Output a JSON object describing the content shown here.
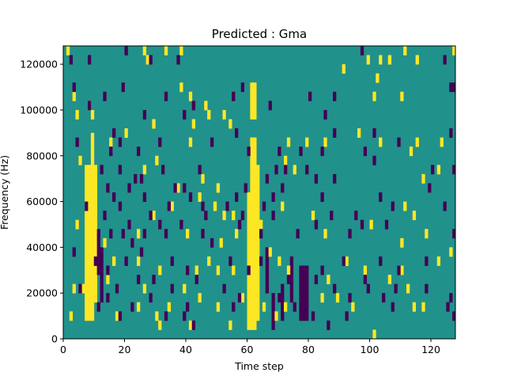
{
  "chart_data": {
    "type": "heatmap",
    "title": "Predicted : Gma",
    "xlabel": "Time step",
    "ylabel": "Frequency (Hz)",
    "xlim": [
      0,
      128
    ],
    "ylim": [
      0,
      128000
    ],
    "x_ticks": [
      "0",
      "20",
      "40",
      "60",
      "80",
      "100",
      "120"
    ],
    "x_tick_values": [
      0,
      20,
      40,
      60,
      80,
      100,
      120
    ],
    "y_ticks": [
      "0",
      "20000",
      "40000",
      "60000",
      "80000",
      "100000",
      "120000"
    ],
    "y_tick_values": [
      0,
      20000,
      40000,
      60000,
      80000,
      100000,
      120000
    ],
    "grid": false,
    "colors": {
      "background": "#21918c",
      "high": "#fde725",
      "low": "#440154"
    },
    "cell_width_steps": 1,
    "cell_height_hz": 4000,
    "high_bands": [
      {
        "x": 7,
        "y0": 8000,
        "y1": 76000
      },
      {
        "x": 8,
        "y0": 8000,
        "y1": 76000
      },
      {
        "x": 9,
        "y0": 8000,
        "y1": 90000
      },
      {
        "x": 10,
        "y0": 16000,
        "y1": 76000
      },
      {
        "x": 6,
        "y0": 20000,
        "y1": 24000
      },
      {
        "x": 60,
        "y0": 4000,
        "y1": 64000
      },
      {
        "x": 61,
        "y0": 4000,
        "y1": 88000
      },
      {
        "x": 62,
        "y0": 4000,
        "y1": 88000
      },
      {
        "x": 63,
        "y0": 8000,
        "y1": 76000
      },
      {
        "x": 61,
        "y0": 96000,
        "y1": 112000
      },
      {
        "x": 62,
        "y0": 96000,
        "y1": 112000
      }
    ],
    "low_bands": [
      {
        "x": 11,
        "y0": 28000,
        "y1": 48000
      },
      {
        "x": 12,
        "y0": 16000,
        "y1": 40000
      },
      {
        "x": 66,
        "y0": 24000,
        "y1": 40000
      },
      {
        "x": 68,
        "y0": 4000,
        "y1": 20000
      },
      {
        "x": 71,
        "y0": 8000,
        "y1": 24000
      },
      {
        "x": 74,
        "y0": 16000,
        "y1": 36000
      },
      {
        "x": 77,
        "y0": 8000,
        "y1": 32000
      },
      {
        "x": 78,
        "y0": 8000,
        "y1": 32000
      },
      {
        "x": 79,
        "y0": 8000,
        "y1": 32000
      }
    ],
    "high_cells": [
      [
        1,
        124000
      ],
      [
        26,
        124000
      ],
      [
        27,
        120000
      ],
      [
        33,
        124000
      ],
      [
        38,
        124000
      ],
      [
        99,
        120000
      ],
      [
        103,
        120000
      ],
      [
        106,
        120000
      ],
      [
        111,
        124000
      ],
      [
        115,
        120000
      ],
      [
        127,
        124000
      ],
      [
        91,
        116000
      ],
      [
        102,
        112000
      ],
      [
        101,
        104000
      ],
      [
        110,
        104000
      ],
      [
        3,
        104000
      ],
      [
        8,
        100000
      ],
      [
        9,
        96000
      ],
      [
        38,
        108000
      ],
      [
        41,
        104000
      ],
      [
        46,
        100000
      ],
      [
        47,
        96000
      ],
      [
        52,
        96000
      ],
      [
        4,
        96000
      ],
      [
        20,
        88000
      ],
      [
        29,
        92000
      ],
      [
        42,
        92000
      ],
      [
        54,
        92000
      ],
      [
        96,
        88000
      ],
      [
        103,
        84000
      ],
      [
        115,
        84000
      ],
      [
        123,
        84000
      ],
      [
        15,
        84000
      ],
      [
        41,
        84000
      ],
      [
        73,
        84000
      ],
      [
        79,
        84000
      ],
      [
        85,
        84000
      ],
      [
        113,
        80000
      ],
      [
        122,
        72000
      ],
      [
        117,
        68000
      ],
      [
        5,
        76000
      ],
      [
        30,
        76000
      ],
      [
        37,
        64000
      ],
      [
        45,
        68000
      ],
      [
        50,
        64000
      ],
      [
        72,
        76000
      ],
      [
        75,
        72000
      ],
      [
        26,
        72000
      ],
      [
        35,
        56000
      ],
      [
        44,
        60000
      ],
      [
        49,
        56000
      ],
      [
        52,
        52000
      ],
      [
        55,
        52000
      ],
      [
        71,
        56000
      ],
      [
        81,
        52000
      ],
      [
        111,
        56000
      ],
      [
        114,
        52000
      ],
      [
        4,
        48000
      ],
      [
        24,
        44000
      ],
      [
        29,
        52000
      ],
      [
        40,
        44000
      ],
      [
        51,
        40000
      ],
      [
        56,
        44000
      ],
      [
        64,
        48000
      ],
      [
        85,
        44000
      ],
      [
        100,
        48000
      ],
      [
        110,
        40000
      ],
      [
        118,
        44000
      ],
      [
        126,
        36000
      ],
      [
        13,
        40000
      ],
      [
        16,
        32000
      ],
      [
        24,
        32000
      ],
      [
        31,
        28000
      ],
      [
        43,
        28000
      ],
      [
        47,
        32000
      ],
      [
        50,
        28000
      ],
      [
        55,
        28000
      ],
      [
        67,
        36000
      ],
      [
        70,
        32000
      ],
      [
        73,
        28000
      ],
      [
        86,
        24000
      ],
      [
        92,
        32000
      ],
      [
        98,
        28000
      ],
      [
        106,
        24000
      ],
      [
        110,
        28000
      ],
      [
        122,
        32000
      ],
      [
        3,
        20000
      ],
      [
        14,
        24000
      ],
      [
        26,
        20000
      ],
      [
        39,
        20000
      ],
      [
        44,
        16000
      ],
      [
        50,
        12000
      ],
      [
        58,
        16000
      ],
      [
        65,
        12000
      ],
      [
        69,
        8000
      ],
      [
        72,
        12000
      ],
      [
        84,
        16000
      ],
      [
        89,
        16000
      ],
      [
        94,
        12000
      ],
      [
        112,
        20000
      ],
      [
        114,
        12000
      ],
      [
        117,
        12000
      ],
      [
        2,
        8000
      ],
      [
        17,
        8000
      ],
      [
        24,
        12000
      ],
      [
        34,
        12000
      ],
      [
        54,
        4000
      ],
      [
        101,
        0
      ],
      [
        30,
        8000
      ],
      [
        31,
        4000
      ],
      [
        41,
        4000
      ]
    ],
    "low_cells": [
      [
        1,
        128000
      ],
      [
        2,
        120000
      ],
      [
        8,
        120000
      ],
      [
        20,
        124000
      ],
      [
        28,
        120000
      ],
      [
        37,
        120000
      ],
      [
        97,
        124000
      ],
      [
        124,
        120000
      ],
      [
        126,
        108000
      ],
      [
        127,
        108000
      ],
      [
        3,
        108000
      ],
      [
        19,
        108000
      ],
      [
        55,
        104000
      ],
      [
        58,
        108000
      ],
      [
        80,
        104000
      ],
      [
        88,
        104000
      ],
      [
        8,
        100000
      ],
      [
        13,
        104000
      ],
      [
        33,
        104000
      ],
      [
        42,
        100000
      ],
      [
        67,
        100000
      ],
      [
        85,
        96000
      ],
      [
        16,
        88000
      ],
      [
        26,
        96000
      ],
      [
        39,
        96000
      ],
      [
        56,
        88000
      ],
      [
        88,
        88000
      ],
      [
        101,
        88000
      ],
      [
        109,
        84000
      ],
      [
        126,
        88000
      ],
      [
        4,
        84000
      ],
      [
        15,
        80000
      ],
      [
        18,
        84000
      ],
      [
        24,
        80000
      ],
      [
        31,
        84000
      ],
      [
        48,
        84000
      ],
      [
        60,
        80000
      ],
      [
        70,
        80000
      ],
      [
        77,
        80000
      ],
      [
        84,
        80000
      ],
      [
        98,
        80000
      ],
      [
        101,
        76000
      ],
      [
        120,
        72000
      ],
      [
        127,
        72000
      ],
      [
        12,
        72000
      ],
      [
        18,
        72000
      ],
      [
        23,
        68000
      ],
      [
        25,
        68000
      ],
      [
        32,
        72000
      ],
      [
        44,
        72000
      ],
      [
        66,
        68000
      ],
      [
        69,
        72000
      ],
      [
        72,
        72000
      ],
      [
        79,
        72000
      ],
      [
        82,
        68000
      ],
      [
        88,
        68000
      ],
      [
        14,
        64000
      ],
      [
        16,
        60000
      ],
      [
        21,
        64000
      ],
      [
        26,
        60000
      ],
      [
        36,
        64000
      ],
      [
        39,
        64000
      ],
      [
        41,
        60000
      ],
      [
        45,
        56000
      ],
      [
        56,
        60000
      ],
      [
        59,
        64000
      ],
      [
        68,
        60000
      ],
      [
        71,
        64000
      ],
      [
        84,
        60000
      ],
      [
        103,
        60000
      ],
      [
        119,
        64000
      ],
      [
        124,
        56000
      ],
      [
        7,
        56000
      ],
      [
        13,
        52000
      ],
      [
        18,
        56000
      ],
      [
        21,
        48000
      ],
      [
        28,
        52000
      ],
      [
        34,
        56000
      ],
      [
        46,
        52000
      ],
      [
        53,
        56000
      ],
      [
        58,
        52000
      ],
      [
        65,
        56000
      ],
      [
        68,
        52000
      ],
      [
        87,
        52000
      ],
      [
        95,
        52000
      ],
      [
        107,
        56000
      ],
      [
        15,
        44000
      ],
      [
        19,
        44000
      ],
      [
        22,
        40000
      ],
      [
        26,
        44000
      ],
      [
        31,
        48000
      ],
      [
        33,
        44000
      ],
      [
        38,
        48000
      ],
      [
        45,
        44000
      ],
      [
        48,
        40000
      ],
      [
        57,
        48000
      ],
      [
        64,
        44000
      ],
      [
        76,
        44000
      ],
      [
        82,
        48000
      ],
      [
        93,
        44000
      ],
      [
        97,
        48000
      ],
      [
        105,
        48000
      ],
      [
        127,
        44000
      ],
      [
        3,
        36000
      ],
      [
        10,
        32000
      ],
      [
        14,
        28000
      ],
      [
        20,
        32000
      ],
      [
        25,
        36000
      ],
      [
        29,
        24000
      ],
      [
        35,
        32000
      ],
      [
        40,
        28000
      ],
      [
        54,
        32000
      ],
      [
        60,
        28000
      ],
      [
        64,
        32000
      ],
      [
        73,
        24000
      ],
      [
        84,
        28000
      ],
      [
        91,
        32000
      ],
      [
        98,
        24000
      ],
      [
        103,
        32000
      ],
      [
        109,
        28000
      ],
      [
        118,
        32000
      ],
      [
        5,
        20000
      ],
      [
        14,
        16000
      ],
      [
        17,
        20000
      ],
      [
        24,
        24000
      ],
      [
        35,
        20000
      ],
      [
        43,
        24000
      ],
      [
        52,
        20000
      ],
      [
        57,
        16000
      ],
      [
        66,
        20000
      ],
      [
        70,
        16000
      ],
      [
        82,
        24000
      ],
      [
        88,
        20000
      ],
      [
        93,
        16000
      ],
      [
        99,
        20000
      ],
      [
        104,
        16000
      ],
      [
        108,
        20000
      ],
      [
        118,
        20000
      ],
      [
        126,
        16000
      ],
      [
        11,
        12000
      ],
      [
        18,
        8000
      ],
      [
        22,
        12000
      ],
      [
        28,
        16000
      ],
      [
        33,
        8000
      ],
      [
        40,
        12000
      ],
      [
        55,
        12000
      ],
      [
        75,
        12000
      ],
      [
        81,
        8000
      ],
      [
        86,
        4000
      ],
      [
        92,
        8000
      ],
      [
        107,
        12000
      ],
      [
        125,
        12000
      ],
      [
        127,
        8000
      ],
      [
        39,
        8000
      ],
      [
        42,
        4000
      ]
    ]
  }
}
